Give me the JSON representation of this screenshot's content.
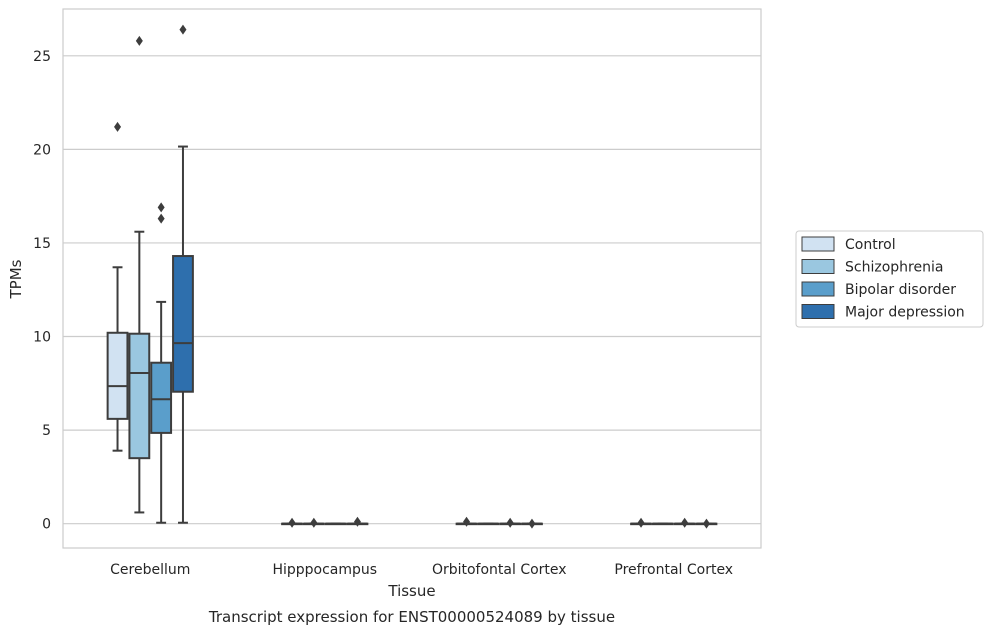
{
  "chart_data": {
    "type": "box",
    "title": "",
    "caption": "Transcript expression for ENST00000524089 by tissue",
    "xlabel": "Tissue",
    "ylabel": "TPMs",
    "ylim": [
      -1.3,
      27.5
    ],
    "yticks": [
      0,
      5,
      10,
      15,
      20,
      25
    ],
    "grid": "horizontal",
    "legend_position": "right",
    "categories": [
      "Cerebellum",
      "Hipppocampus",
      "Orbitofontal Cortex",
      "Prefrontal Cortex"
    ],
    "series": [
      {
        "name": "Control",
        "color": "#d1e2f2",
        "boxes": [
          {
            "whisker_low": 3.9,
            "q1": 5.6,
            "median": 7.35,
            "q3": 10.2,
            "whisker_high": 13.7,
            "outliers": [
              21.2
            ]
          },
          {
            "whisker_low": 0,
            "q1": 0,
            "median": 0,
            "q3": 0,
            "whisker_high": 0,
            "outliers": [
              0.05
            ]
          },
          {
            "whisker_low": 0,
            "q1": 0,
            "median": 0,
            "q3": 0,
            "whisker_high": 0,
            "outliers": [
              0.1
            ]
          },
          {
            "whisker_low": 0,
            "q1": 0,
            "median": 0,
            "q3": 0,
            "whisker_high": 0,
            "outliers": [
              0.05
            ]
          }
        ]
      },
      {
        "name": "Schizophrenia",
        "color": "#9ac7e0",
        "boxes": [
          {
            "whisker_low": 0.6,
            "q1": 3.5,
            "median": 8.05,
            "q3": 10.15,
            "whisker_high": 15.6,
            "outliers": [
              25.8
            ]
          },
          {
            "whisker_low": 0,
            "q1": 0,
            "median": 0,
            "q3": 0,
            "whisker_high": 0,
            "outliers": [
              0.05
            ]
          },
          {
            "whisker_low": 0,
            "q1": 0,
            "median": 0,
            "q3": 0,
            "whisker_high": 0,
            "outliers": []
          },
          {
            "whisker_low": 0,
            "q1": 0,
            "median": 0,
            "q3": 0,
            "whisker_high": 0,
            "outliers": []
          }
        ]
      },
      {
        "name": "Bipolar disorder",
        "color": "#5a9ecb",
        "boxes": [
          {
            "whisker_low": 0.05,
            "q1": 4.85,
            "median": 6.65,
            "q3": 8.6,
            "whisker_high": 11.85,
            "outliers": [
              16.3,
              16.9
            ]
          },
          {
            "whisker_low": 0,
            "q1": 0,
            "median": 0,
            "q3": 0,
            "whisker_high": 0,
            "outliers": []
          },
          {
            "whisker_low": 0,
            "q1": 0,
            "median": 0,
            "q3": 0,
            "whisker_high": 0,
            "outliers": [
              0.05
            ]
          },
          {
            "whisker_low": 0,
            "q1": 0,
            "median": 0,
            "q3": 0,
            "whisker_high": 0,
            "outliers": [
              0.05
            ]
          }
        ]
      },
      {
        "name": "Major depression",
        "color": "#2e6fad",
        "boxes": [
          {
            "whisker_low": 0.05,
            "q1": 7.05,
            "median": 9.65,
            "q3": 14.3,
            "whisker_high": 20.15,
            "outliers": [
              26.4
            ]
          },
          {
            "whisker_low": 0,
            "q1": 0,
            "median": 0,
            "q3": 0,
            "whisker_high": 0,
            "outliers": [
              0.1
            ]
          },
          {
            "whisker_low": 0,
            "q1": 0,
            "median": 0,
            "q3": 0,
            "whisker_high": 0,
            "outliers": [
              0.0
            ]
          },
          {
            "whisker_low": 0,
            "q1": 0,
            "median": 0,
            "q3": 0,
            "whisker_high": 0,
            "outliers": [
              0.0
            ]
          }
        ]
      }
    ]
  }
}
